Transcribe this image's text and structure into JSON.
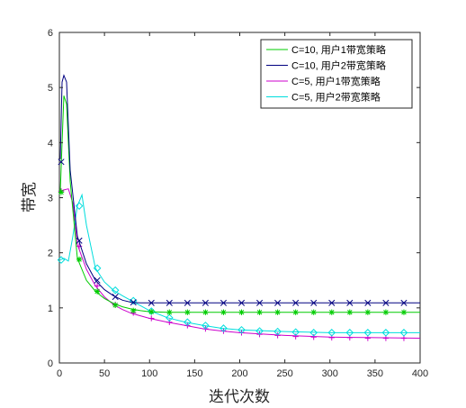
{
  "chart_data": {
    "type": "line",
    "title": "",
    "xlabel": "迭代次数",
    "ylabel": "带宽",
    "xlim": [
      0,
      400
    ],
    "ylim": [
      0,
      6
    ],
    "xticks": [
      0,
      50,
      100,
      150,
      200,
      250,
      300,
      350,
      400
    ],
    "yticks": [
      0,
      1,
      2,
      3,
      4,
      5,
      6
    ],
    "grid": false,
    "legend_position": "top-right",
    "series": [
      {
        "name": "C=10, 用户1带宽策略",
        "color": "#00cc00",
        "marker": "asterisk",
        "x": [
          1,
          3,
          5,
          8,
          12,
          20,
          30,
          40,
          50,
          60,
          70,
          80,
          90,
          100,
          120,
          150,
          200,
          250,
          300,
          350,
          400
        ],
        "y": [
          3.1,
          4.0,
          4.85,
          4.7,
          3.3,
          1.9,
          1.5,
          1.3,
          1.17,
          1.08,
          1.02,
          0.98,
          0.95,
          0.93,
          0.92,
          0.92,
          0.92,
          0.92,
          0.92,
          0.92,
          0.92
        ],
        "marker_x": [
          2,
          22,
          42,
          62,
          82,
          102,
          122,
          142,
          162,
          182,
          202,
          222,
          242,
          262,
          282,
          302,
          322,
          342,
          362,
          382
        ],
        "marker_y": [
          3.1,
          1.88,
          1.3,
          1.05,
          0.95,
          0.93,
          0.92,
          0.92,
          0.92,
          0.92,
          0.92,
          0.92,
          0.92,
          0.92,
          0.92,
          0.92,
          0.92,
          0.92,
          0.92,
          0.92
        ]
      },
      {
        "name": "C=10, 用户2带宽策略",
        "color": "#000080",
        "marker": "x",
        "x": [
          1,
          3,
          5,
          8,
          12,
          20,
          30,
          40,
          50,
          60,
          70,
          80,
          90,
          100,
          120,
          150,
          200,
          250,
          300,
          350,
          400
        ],
        "y": [
          3.7,
          5.1,
          5.22,
          5.1,
          3.5,
          2.3,
          1.8,
          1.5,
          1.33,
          1.22,
          1.14,
          1.1,
          1.09,
          1.09,
          1.09,
          1.09,
          1.09,
          1.09,
          1.09,
          1.09,
          1.09
        ],
        "marker_x": [
          2,
          22,
          42,
          62,
          82,
          102,
          122,
          142,
          162,
          182,
          202,
          222,
          242,
          262,
          282,
          302,
          322,
          342,
          362,
          382
        ],
        "marker_y": [
          3.65,
          2.22,
          1.5,
          1.2,
          1.1,
          1.09,
          1.09,
          1.09,
          1.09,
          1.09,
          1.09,
          1.09,
          1.09,
          1.09,
          1.09,
          1.09,
          1.09,
          1.09,
          1.09,
          1.09
        ]
      },
      {
        "name": "C=5, 用户1带宽策略",
        "color": "#cc00cc",
        "marker": "plus",
        "x": [
          1,
          5,
          10,
          15,
          20,
          30,
          40,
          50,
          60,
          70,
          80,
          100,
          120,
          140,
          160,
          180,
          200,
          250,
          300,
          350,
          400
        ],
        "y": [
          3.12,
          3.14,
          3.16,
          2.9,
          2.15,
          1.7,
          1.4,
          1.2,
          1.06,
          0.97,
          0.9,
          0.81,
          0.74,
          0.68,
          0.62,
          0.58,
          0.55,
          0.5,
          0.47,
          0.46,
          0.45
        ],
        "marker_x": [
          2,
          22,
          42,
          62,
          82,
          102,
          122,
          142,
          162,
          182,
          202,
          222,
          242,
          262,
          282,
          302,
          322,
          342,
          362,
          382
        ],
        "marker_y": [
          3.12,
          2.12,
          1.4,
          1.06,
          0.91,
          0.81,
          0.74,
          0.68,
          0.62,
          0.58,
          0.55,
          0.52,
          0.5,
          0.48,
          0.47,
          0.46,
          0.46,
          0.45,
          0.45,
          0.45
        ]
      },
      {
        "name": "C=5, 用户2带宽策略",
        "color": "#00dddd",
        "marker": "diamond",
        "x": [
          1,
          5,
          10,
          15,
          20,
          25,
          30,
          40,
          50,
          60,
          70,
          80,
          100,
          120,
          140,
          160,
          180,
          200,
          250,
          300,
          350,
          400
        ],
        "y": [
          1.87,
          1.9,
          1.85,
          2.3,
          2.85,
          3.05,
          2.5,
          1.72,
          1.47,
          1.32,
          1.22,
          1.13,
          0.95,
          0.82,
          0.74,
          0.68,
          0.63,
          0.6,
          0.57,
          0.55,
          0.55,
          0.55
        ],
        "marker_x": [
          2,
          22,
          42,
          62,
          82,
          102,
          122,
          142,
          162,
          182,
          202,
          222,
          242,
          262,
          282,
          302,
          322,
          342,
          362,
          382
        ],
        "marker_y": [
          1.87,
          2.85,
          1.72,
          1.32,
          1.13,
          0.94,
          0.82,
          0.74,
          0.68,
          0.63,
          0.6,
          0.58,
          0.57,
          0.56,
          0.55,
          0.55,
          0.55,
          0.55,
          0.55,
          0.55
        ]
      }
    ]
  }
}
